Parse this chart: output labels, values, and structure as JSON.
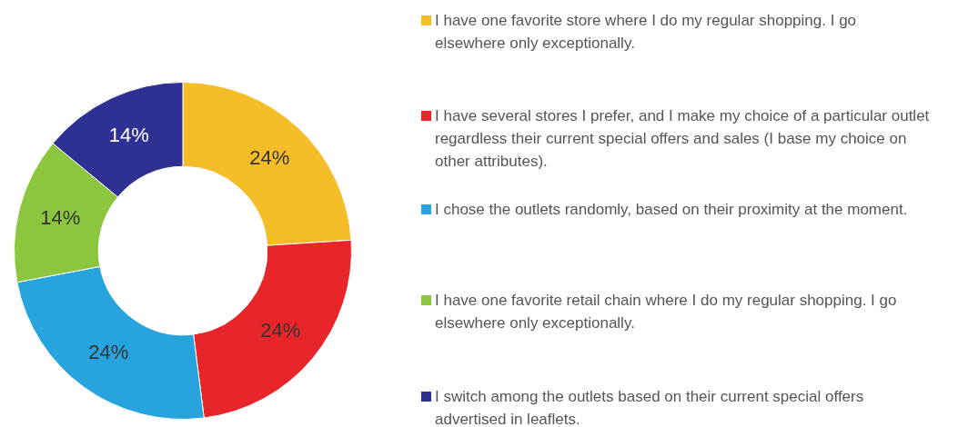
{
  "chart_data": {
    "type": "donut",
    "categories": [
      "I have one favorite store where I do my regular shopping. I go elsewhere only exceptionally.",
      "I have several stores I prefer, and I make my choice of a particular outlet regardless their current special offers and sales (I base my choice on other attributes).",
      "I chose the outlets randomly, based on their proximity at the moment.",
      "I have one favorite retail chain where I do my regular shopping. I go elsewhere only exceptionally.",
      "I switch among the outlets based on their current special offers advertised in leaflets."
    ],
    "values": [
      24,
      24,
      24,
      14,
      14
    ],
    "value_labels": [
      "24%",
      "24%",
      "24%",
      "14%",
      "14%"
    ],
    "colors": [
      "#f5bd27",
      "#e8262a",
      "#27a3dd",
      "#8cc63f",
      "#2e3191"
    ],
    "legend": "right"
  }
}
